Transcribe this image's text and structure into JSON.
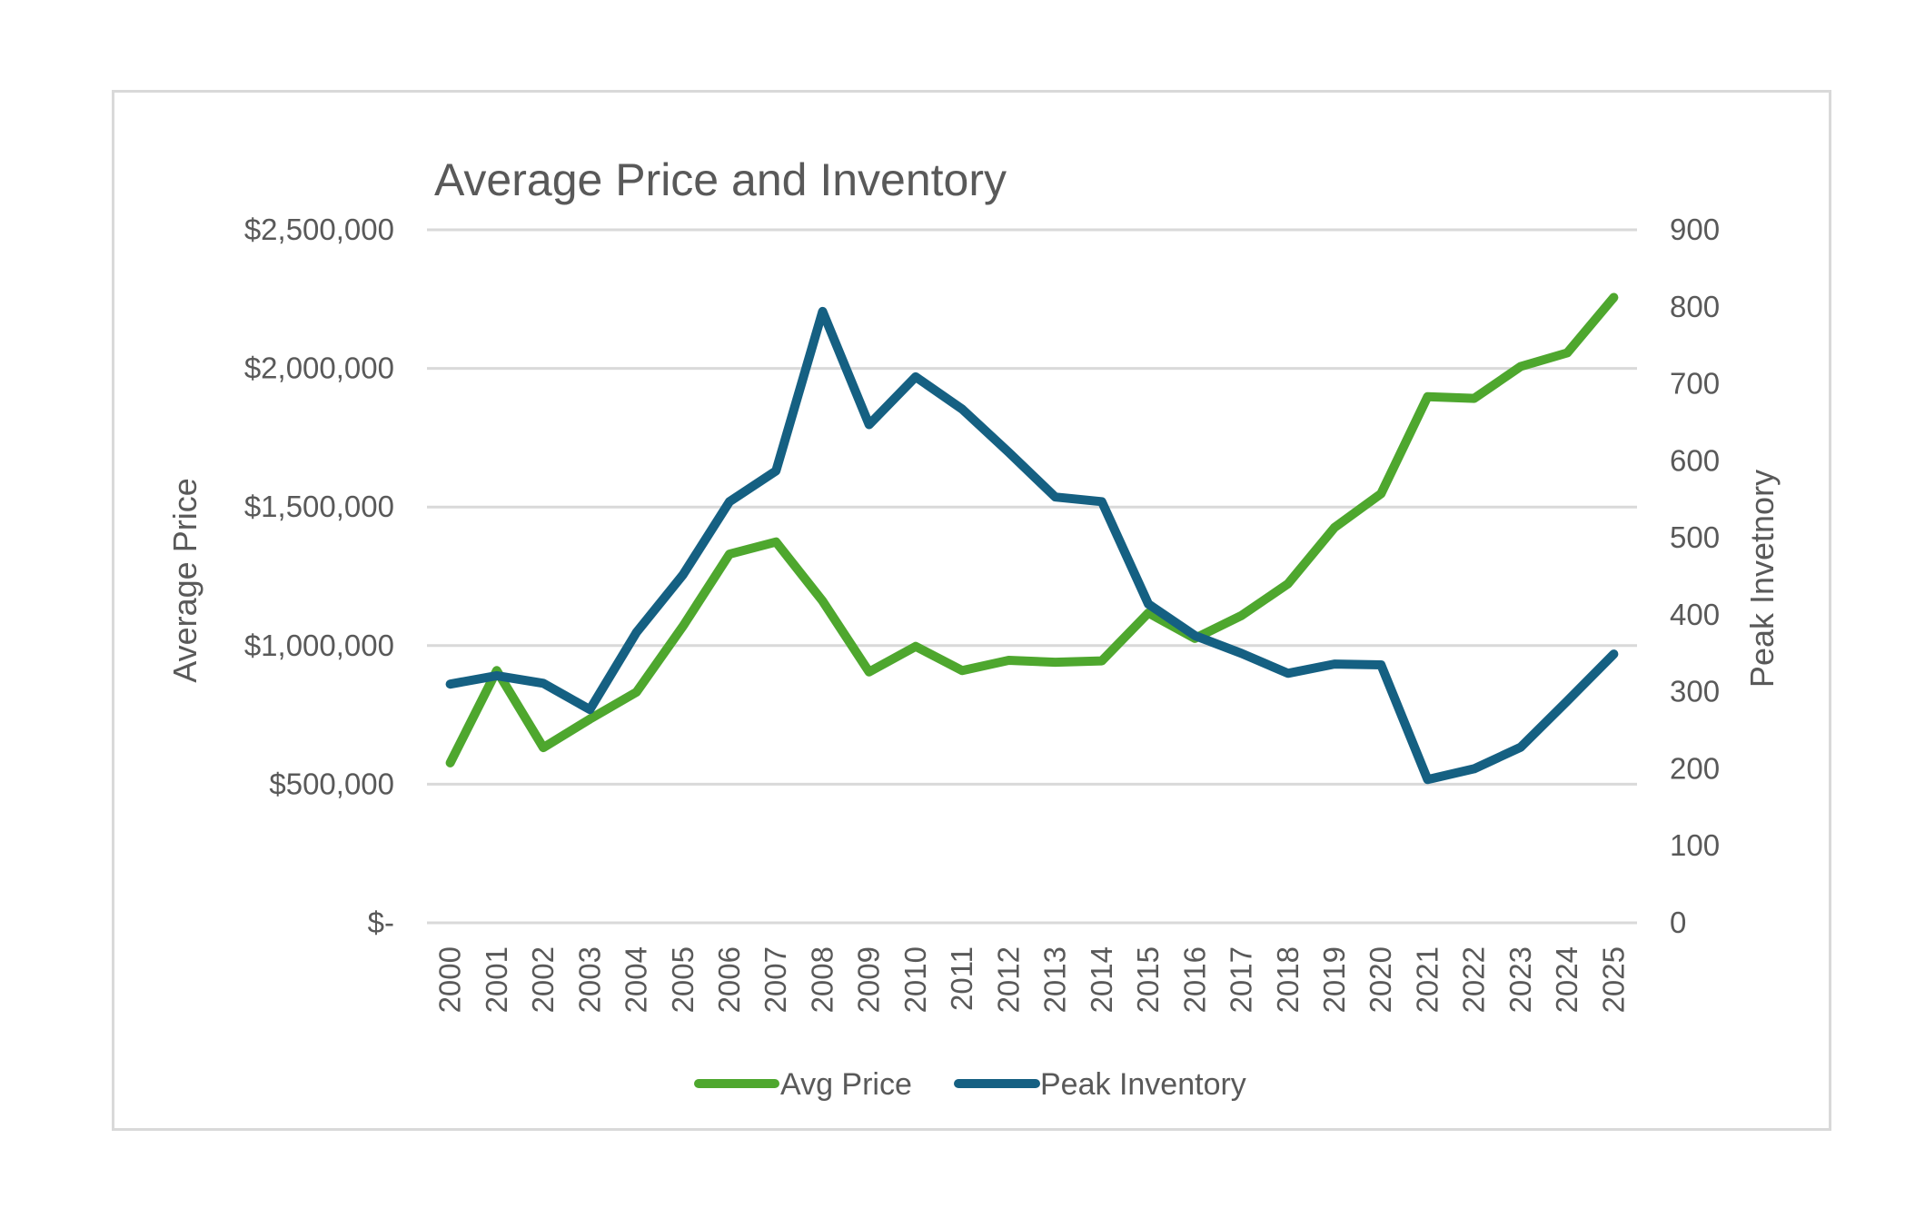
{
  "chart_data": {
    "type": "line",
    "title": "Average Price and Inventory",
    "xlabel": "",
    "ylabel": "Average Price",
    "y2label": "Peak Invetnory",
    "categories": [
      "2000",
      "2001",
      "2002",
      "2003",
      "2004",
      "2005",
      "2006",
      "2007",
      "2008",
      "2009",
      "2010",
      "2011",
      "2012",
      "2013",
      "2014",
      "2015",
      "2016",
      "2017",
      "2018",
      "2019",
      "2020",
      "2021",
      "2022",
      "2023",
      "2024",
      "2025"
    ],
    "ylim": [
      0,
      2500000
    ],
    "y2lim": [
      0,
      900
    ],
    "yticks": [
      0,
      500000,
      1000000,
      1500000,
      2000000,
      2500000
    ],
    "ytick_labels": [
      "$-",
      "$500,000",
      "$1,000,000",
      "$1,500,000",
      "$2,000,000",
      "$2,500,000"
    ],
    "y2ticks": [
      0,
      100,
      200,
      300,
      400,
      500,
      600,
      700,
      800,
      900
    ],
    "y2tick_labels": [
      "0",
      "100",
      "200",
      "300",
      "400",
      "500",
      "600",
      "700",
      "800",
      "900"
    ],
    "grid": true,
    "legend_position": "bottom",
    "series": [
      {
        "name": "Avg Price",
        "axis": "left",
        "color": "#4EA72E",
        "values": [
          577000,
          910000,
          632000,
          735000,
          832000,
          1070000,
          1330000,
          1374000,
          1161000,
          905000,
          997000,
          910000,
          947000,
          940000,
          945000,
          1118000,
          1026000,
          1108000,
          1223000,
          1426000,
          1548000,
          1898000,
          1892000,
          2007000,
          2056000,
          2256000
        ]
      },
      {
        "name": "Peak Inventory",
        "axis": "right",
        "color": "#156082",
        "values": [
          310,
          321,
          311,
          277,
          377,
          452,
          547,
          587,
          794,
          647,
          709,
          667,
          611,
          553,
          547,
          414,
          373,
          350,
          324,
          336,
          335,
          186,
          200,
          228,
          288,
          349
        ]
      }
    ]
  }
}
